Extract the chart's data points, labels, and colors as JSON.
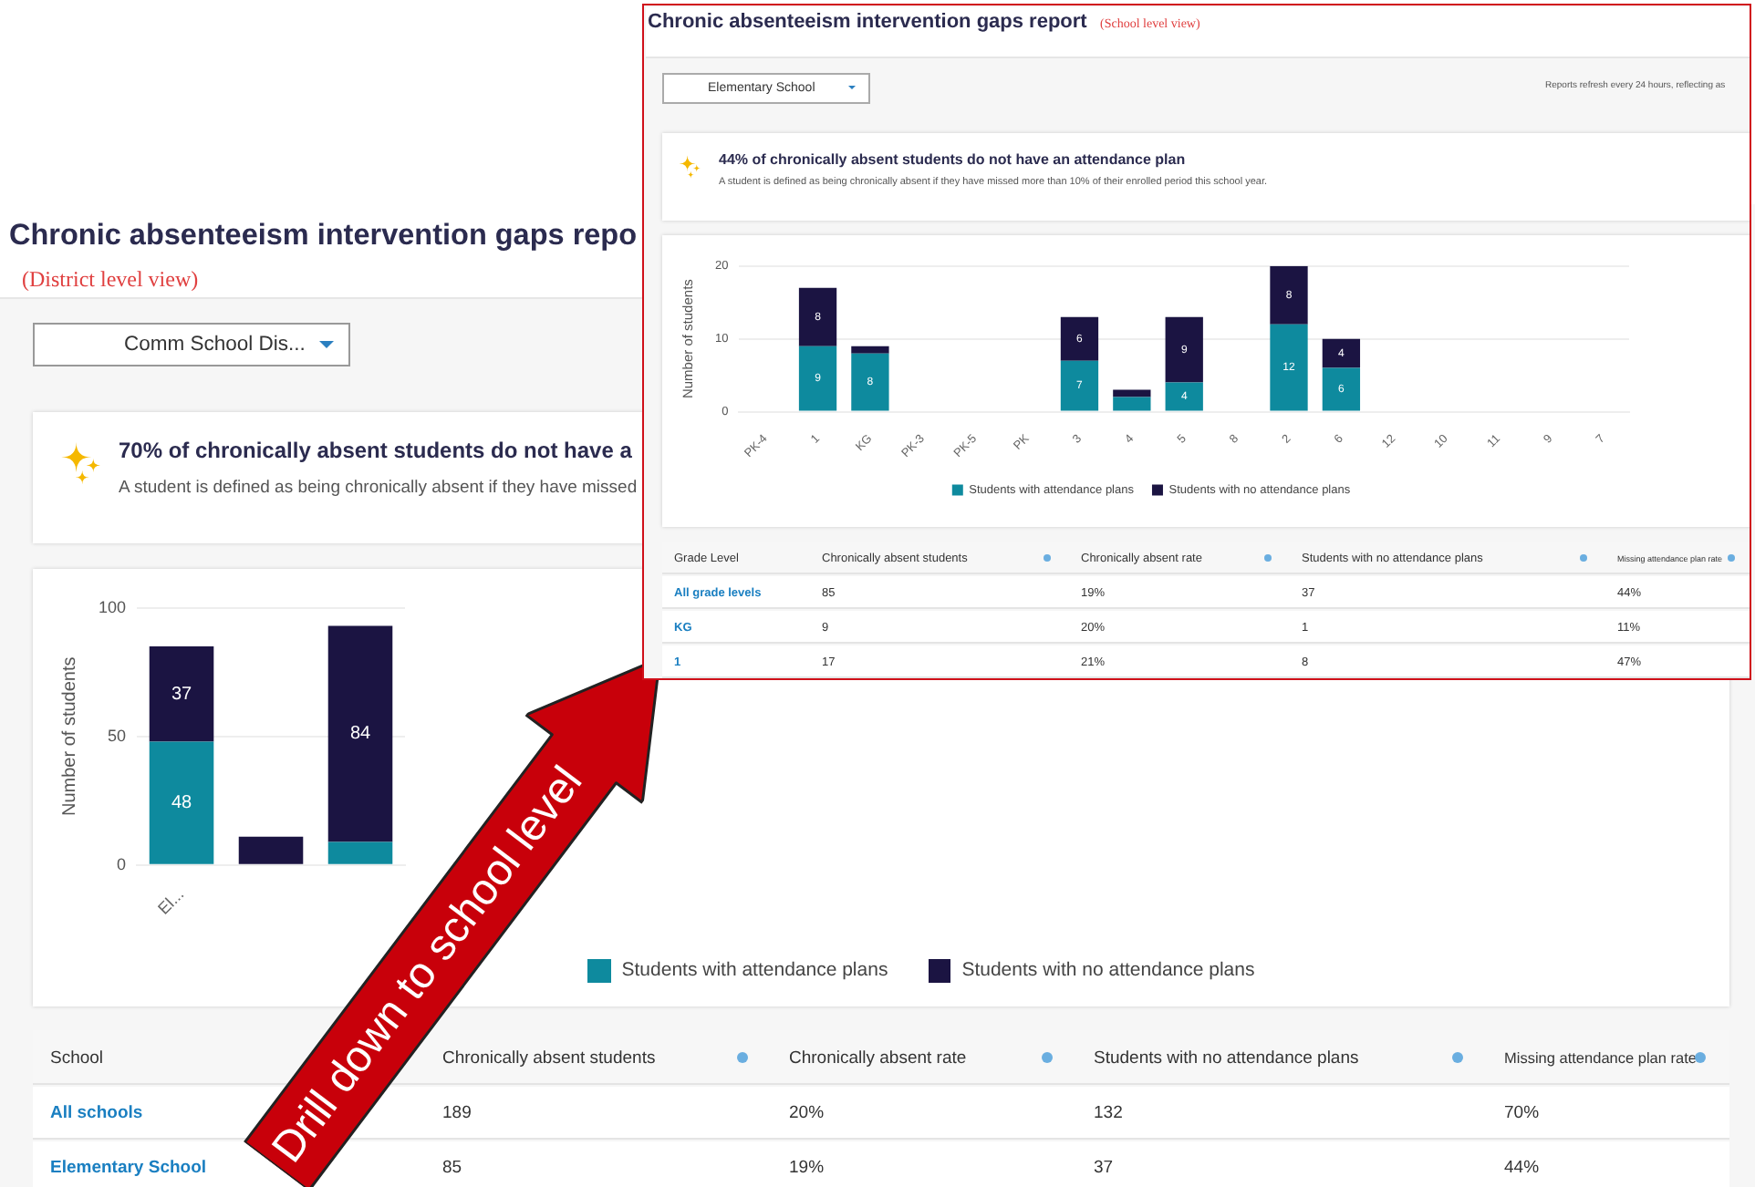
{
  "chart_data": [
    {
      "type": "bar",
      "title": "Chronic absenteeism intervention gaps repo",
      "subtitle": "(District level view)",
      "ylabel": "Number of students",
      "categories": [
        "El...",
        null,
        null
      ],
      "stacked": true,
      "series": [
        {
          "name": "Students with attendance plans",
          "color": "#0e8a9e",
          "values": [
            48,
            0,
            9
          ],
          "value_labels": [
            "48",
            null,
            null
          ]
        },
        {
          "name": "Students with no attendance plans",
          "color": "#1b1442",
          "values": [
            37,
            11,
            84
          ],
          "value_labels": [
            "37",
            null,
            "84"
          ]
        }
      ],
      "ylim": [
        0,
        100
      ],
      "yticks": [
        0,
        50,
        100
      ],
      "grid": "y",
      "legend": "bottom",
      "annotations": [
        "Comm School Dis...",
        "70% of chronically absent students do not have a",
        "A student is defined as being chronically absent if they have missed",
        "School",
        "Chronically absent students",
        "Chronically absent rate",
        "Students with no attendance plans",
        "Missing attendance plan rate",
        "All schools",
        "189",
        "20%",
        "132",
        "70%",
        "Elementary School",
        "85",
        "19%",
        "37",
        "44%",
        "Drill down to school level"
      ]
    },
    {
      "type": "bar",
      "title": "Chronic absenteeism intervention gaps report",
      "subtitle": "(School level view)",
      "ylabel": "Number of students",
      "categories": [
        "PK-4",
        "1",
        "KG",
        "PK-3",
        "PK-5",
        "PK",
        "3",
        "4",
        "5",
        "8",
        "2",
        "6",
        "12",
        "10",
        "11",
        "9",
        "7"
      ],
      "stacked": true,
      "series": [
        {
          "name": "Students with attendance plans",
          "color": "#0e8a9e",
          "values": [
            0,
            9,
            8,
            0,
            0,
            0,
            7,
            2,
            4,
            0,
            12,
            6,
            0,
            0,
            0,
            0,
            0
          ],
          "value_labels": [
            null,
            "9",
            "8",
            null,
            null,
            null,
            "7",
            null,
            "4",
            null,
            "12",
            "6",
            null,
            null,
            null,
            null,
            null
          ]
        },
        {
          "name": "Students with no attendance plans",
          "color": "#1b1442",
          "values": [
            0,
            8,
            1,
            0,
            0,
            0,
            6,
            1,
            9,
            0,
            8,
            4,
            0,
            0,
            0,
            0,
            0
          ],
          "value_labels": [
            null,
            "8",
            null,
            null,
            null,
            null,
            "6",
            null,
            "9",
            null,
            "8",
            "4",
            null,
            null,
            null,
            null,
            null
          ]
        }
      ],
      "ylim": [
        0,
        20
      ],
      "yticks": [
        0,
        10,
        20
      ],
      "grid": "y",
      "legend": "bottom",
      "annotations": [
        "Elementary School",
        "Reports refresh every 24 hours, reflecting as",
        "44% of chronically absent students do not have an attendance plan",
        "A student is defined as being chronically absent if they have missed more than 10% of their enrolled period this school year.",
        "Grade Level",
        "Chronically absent students",
        "Chronically absent rate",
        "Students with no attendance plans",
        "Missing attendance plan rate",
        "All grade levels",
        "85",
        "19%",
        "37",
        "44%",
        "KG",
        "9",
        "20%",
        "1",
        "11%",
        "1",
        "17",
        "21%",
        "8",
        "47%"
      ]
    }
  ]
}
